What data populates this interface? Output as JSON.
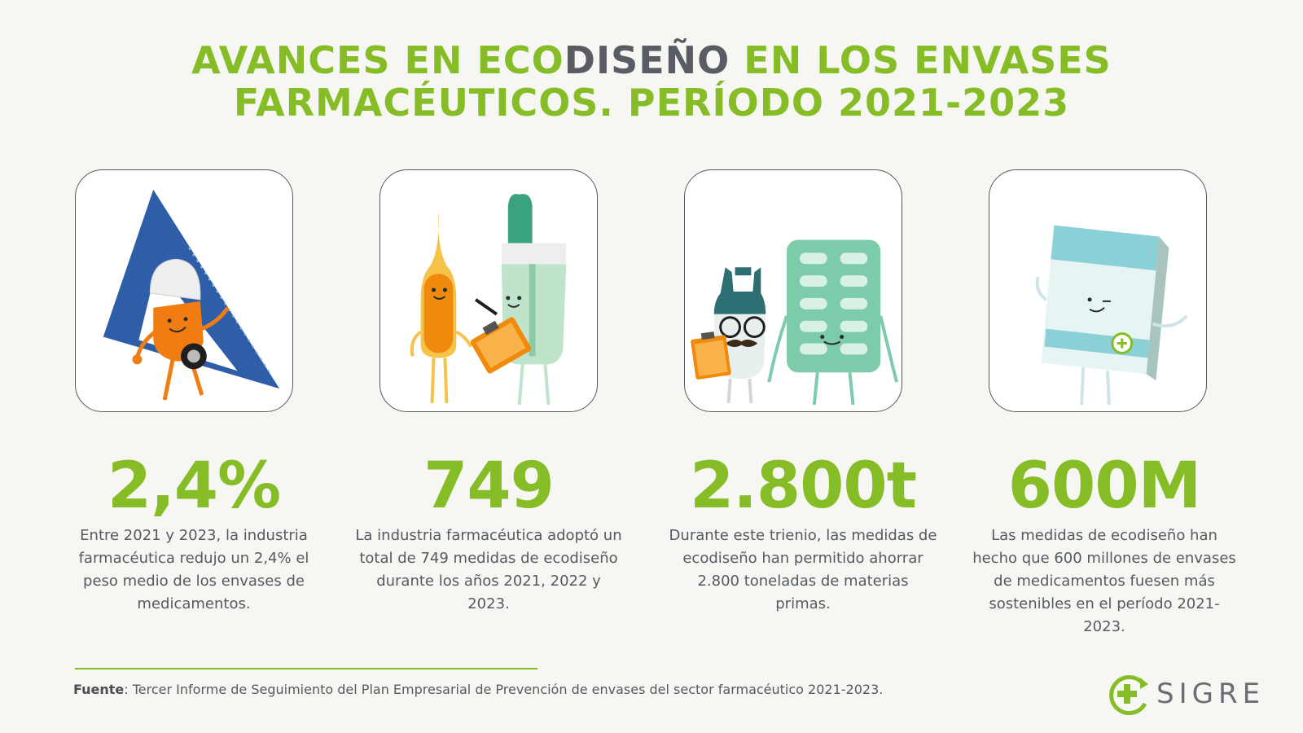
{
  "title": {
    "part1": "AVANCES EN ECO",
    "part2": "DISEÑO",
    "part3": " EN LOS ENVASES",
    "line2": "FARMACÉUTICOS. PERÍODO 2021-2023"
  },
  "stats": [
    {
      "value": "2,4%",
      "description": "Entre 2021 y 2023, la industria farmacéutica redujo un 2,4% el peso medio de los envases de medicamentos.",
      "icon": "triangle-ruler-character-icon"
    },
    {
      "value": "749",
      "description": "La industria farmacéutica adoptó un total de 749 medidas de ecodiseño durante los años 2021, 2022 y 2023.",
      "icon": "ampoule-and-bottle-characters-icon"
    },
    {
      "value": "2.800t",
      "description": "Durante este trienio, las medidas de ecodiseño han permitido ahorrar 2.800 toneladas de materias primas.",
      "icon": "dropper-and-blister-characters-icon"
    },
    {
      "value": "600M",
      "description": "Las medidas de ecodiseño han hecho que 600 millones de envases de medicamentos fuesen más sostenibles en el período 2021-2023.",
      "icon": "medicine-box-character-icon"
    }
  ],
  "footer": {
    "source_label": "Fuente",
    "source_text": ": Tercer Informe de Seguimiento del Plan Empresarial de Prevención de envases del sector farmacéutico 2021-2023.",
    "logo_text": "SIGRE"
  },
  "colors": {
    "accent_green": "#86bd27",
    "dark_gray": "#5a5c63",
    "background": "#f6f7f3"
  }
}
